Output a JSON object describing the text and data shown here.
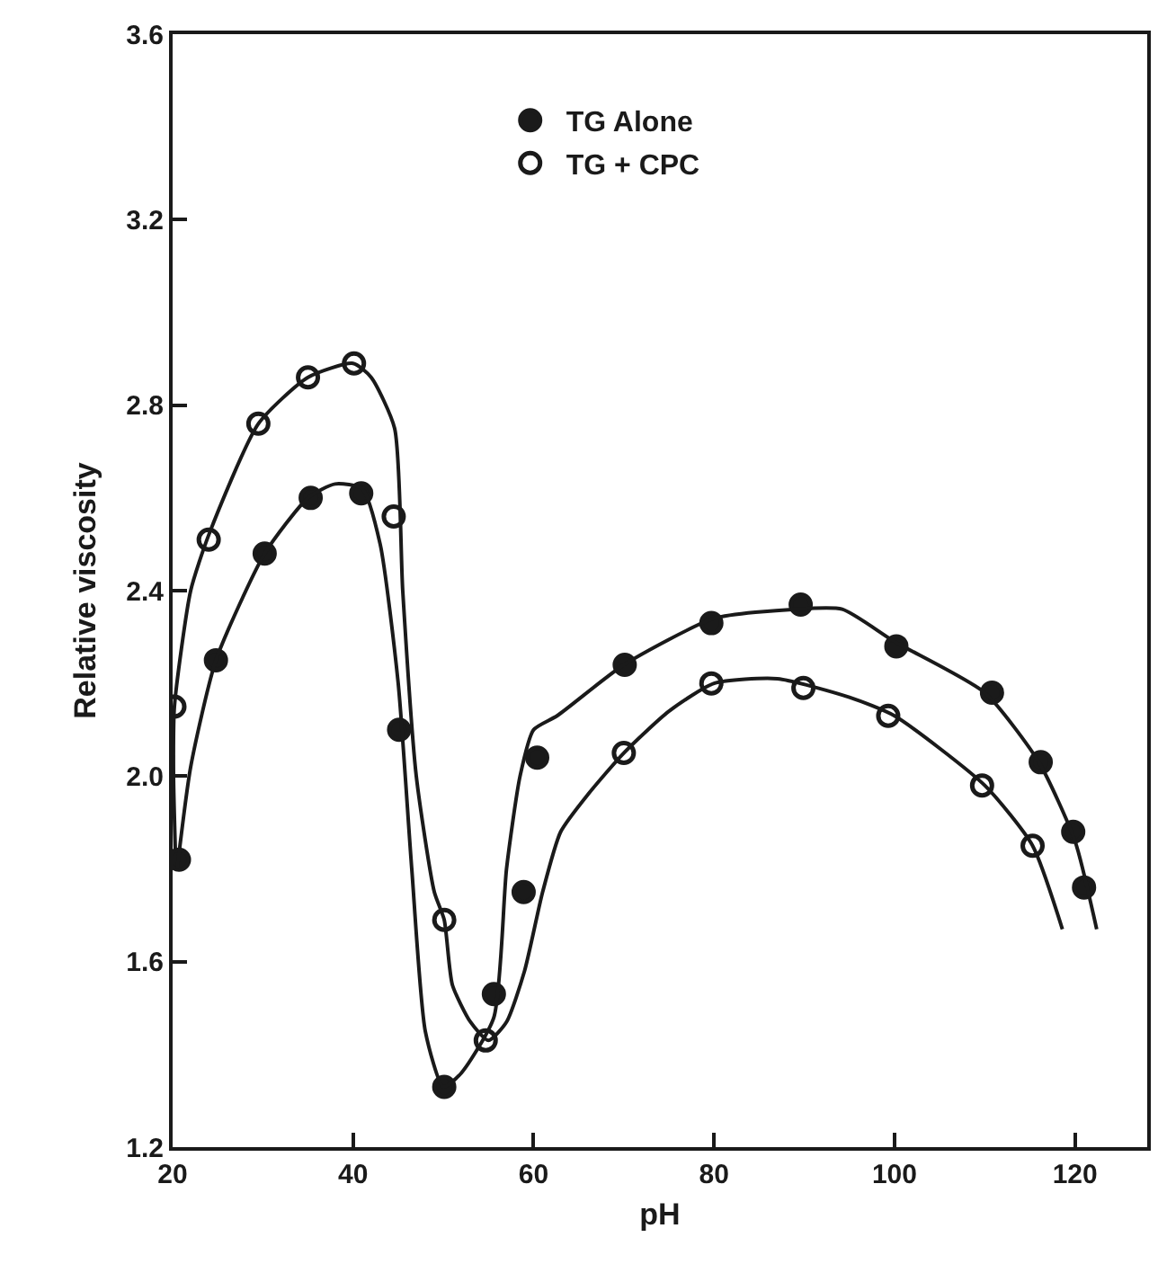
{
  "chart_data": {
    "type": "line",
    "xlabel": "pH",
    "ylabel": "Relative viscosity",
    "xlim": [
      20,
      128
    ],
    "ylim": [
      1.2,
      3.6
    ],
    "xticks": [
      20,
      40,
      60,
      80,
      100,
      120
    ],
    "yticks": [
      {
        "value": 1.2,
        "label": "1.2"
      },
      {
        "value": 1.6,
        "label": "1.6"
      },
      {
        "value": 2.0,
        "label": "2.0"
      },
      {
        "value": 2.4,
        "label": "2.4"
      },
      {
        "value": 2.8,
        "label": "2.8"
      },
      {
        "value": 3.2,
        "label": "3.2"
      },
      {
        "value": 3.6,
        "label": "3.6"
      }
    ],
    "legend": "top",
    "series": [
      {
        "name": "TG Alone",
        "type": "scatter",
        "marker": "circle",
        "color": "#1a1a1a",
        "x": [
          20.7,
          24.8,
          30.2,
          35.3,
          40.9,
          45.1,
          50.1,
          55.6,
          58.9,
          60.4,
          70.1,
          79.7,
          89.6,
          100.2,
          110.8,
          116.2,
          119.8,
          121.0
        ],
        "values": [
          1.82,
          2.25,
          2.48,
          2.6,
          2.61,
          2.1,
          1.33,
          1.53,
          1.75,
          2.04,
          2.24,
          2.33,
          2.37,
          2.28,
          2.18,
          2.03,
          1.88,
          1.76
        ]
      },
      {
        "name": "TG + CPC",
        "type": "scatter",
        "marker": "circle-open",
        "color": "#1a1a1a",
        "x": [
          20.2,
          24.0,
          29.5,
          35.0,
          40.1,
          44.5,
          50.1,
          54.7,
          70.0,
          79.7,
          89.9,
          99.3,
          109.7,
          115.3
        ],
        "values": [
          2.15,
          2.51,
          2.76,
          2.86,
          2.89,
          2.56,
          1.69,
          1.43,
          2.05,
          2.2,
          2.19,
          2.13,
          1.98,
          1.85
        ]
      },
      {
        "color": "#1a1a1a",
        "marker": "none",
        "x": [
          20.5,
          22,
          24.8,
          30.2,
          35,
          38,
          41,
          43,
          45,
          46.5,
          48,
          50,
          52,
          55.6,
          57,
          58.5,
          60,
          62.6,
          70,
          80,
          89,
          94.2,
          100,
          110,
          116,
          120,
          122.4
        ],
        "values": [
          1.8,
          2.02,
          2.25,
          2.48,
          2.6,
          2.63,
          2.62,
          2.5,
          2.2,
          1.8,
          1.45,
          1.33,
          1.36,
          1.48,
          1.8,
          2.0,
          2.1,
          2.13,
          2.24,
          2.34,
          2.36,
          2.36,
          2.29,
          2.18,
          2.03,
          1.86,
          1.67
        ]
      },
      {
        "color": "#1a1a1a",
        "marker": "none",
        "x": [
          20.3,
          20.1,
          20.2,
          22,
          24,
          29.5,
          35,
          40,
          42,
          44.6,
          45.5,
          47,
          49,
          50.1,
          51,
          53,
          55,
          57,
          59,
          61,
          63,
          66,
          70,
          75,
          80,
          87,
          95,
          100,
          110,
          115.3,
          118.6
        ],
        "values": [
          1.84,
          2.0,
          2.15,
          2.4,
          2.52,
          2.76,
          2.86,
          2.89,
          2.86,
          2.75,
          2.4,
          2.0,
          1.75,
          1.69,
          1.55,
          1.47,
          1.43,
          1.47,
          1.58,
          1.75,
          1.88,
          1.96,
          2.05,
          2.14,
          2.2,
          2.21,
          2.17,
          2.13,
          1.98,
          1.85,
          1.67
        ]
      }
    ]
  }
}
